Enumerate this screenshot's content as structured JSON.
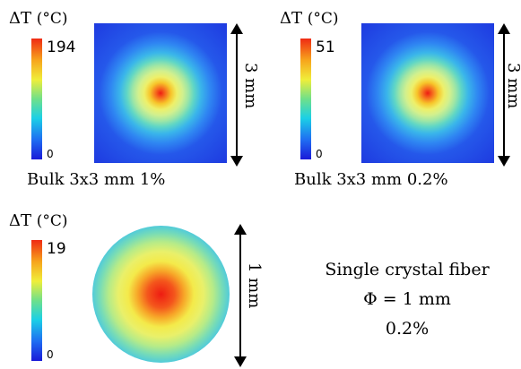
{
  "panels": [
    {
      "dt_label": "ΔT",
      "unit": "(°C)",
      "max": "194",
      "min": "0",
      "caption": "Bulk 3x3 mm 1%",
      "size_label": "3 mm"
    },
    {
      "dt_label": "ΔT",
      "unit": "(°C)",
      "max": "51",
      "min": "0",
      "caption": "Bulk 3x3 mm 0.2%",
      "size_label": "3 mm"
    },
    {
      "dt_label": "ΔT",
      "unit": "(°C)",
      "max": "19",
      "min": "0",
      "size_label": "1 mm"
    }
  ],
  "fiber_caption": {
    "line1": "Single crystal fiber",
    "line2": "Φ = 1 mm",
    "line3": "0.2%"
  }
}
